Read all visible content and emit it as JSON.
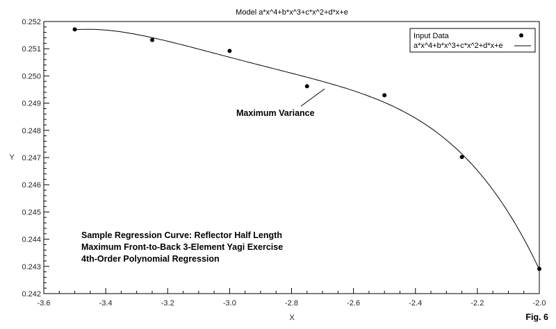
{
  "chart_data": {
    "type": "scatter",
    "title": "Model a*x^4+b*x^3+c*x^2+d*x+e",
    "xlabel": "X",
    "ylabel": "Y",
    "xlim": [
      -3.6,
      -2.0
    ],
    "ylim": [
      0.242,
      0.252
    ],
    "xticks": [
      "-3.6",
      "-3.4",
      "-3.2",
      "-3.0",
      "-2.8",
      "-2.6",
      "-2.4",
      "-2.2",
      "-2.0"
    ],
    "yticks": [
      "0.242",
      "0.243",
      "0.244",
      "0.245",
      "0.246",
      "0.247",
      "0.248",
      "0.249",
      "0.250",
      "0.251",
      "0.252"
    ],
    "grid": false,
    "legend": {
      "position": "top-right",
      "entries": [
        "Input Data",
        "a*x^4+b*x^3+c*x^2+d*x+e"
      ]
    },
    "series": [
      {
        "name": "Input Data",
        "kind": "points",
        "x": [
          -3.5,
          -3.25,
          -3.0,
          -2.75,
          -2.5,
          -2.25,
          -2.0
        ],
        "y": [
          0.25171,
          0.25132,
          0.25092,
          0.24962,
          0.24929,
          0.24702,
          0.24291
        ]
      },
      {
        "name": "a*x^4+b*x^3+c*x^2+d*x+e",
        "kind": "fit-line",
        "order": 4
      }
    ],
    "annotations": {
      "max_variance": "Maximum Variance",
      "notes": [
        "Sample Regression Curve:  Reflector Half Length",
        "Maximum Front-to-Back 3-Element Yagi Exercise",
        "4th-Order Polynomial Regression"
      ],
      "figure_label": "Fig. 6"
    }
  }
}
